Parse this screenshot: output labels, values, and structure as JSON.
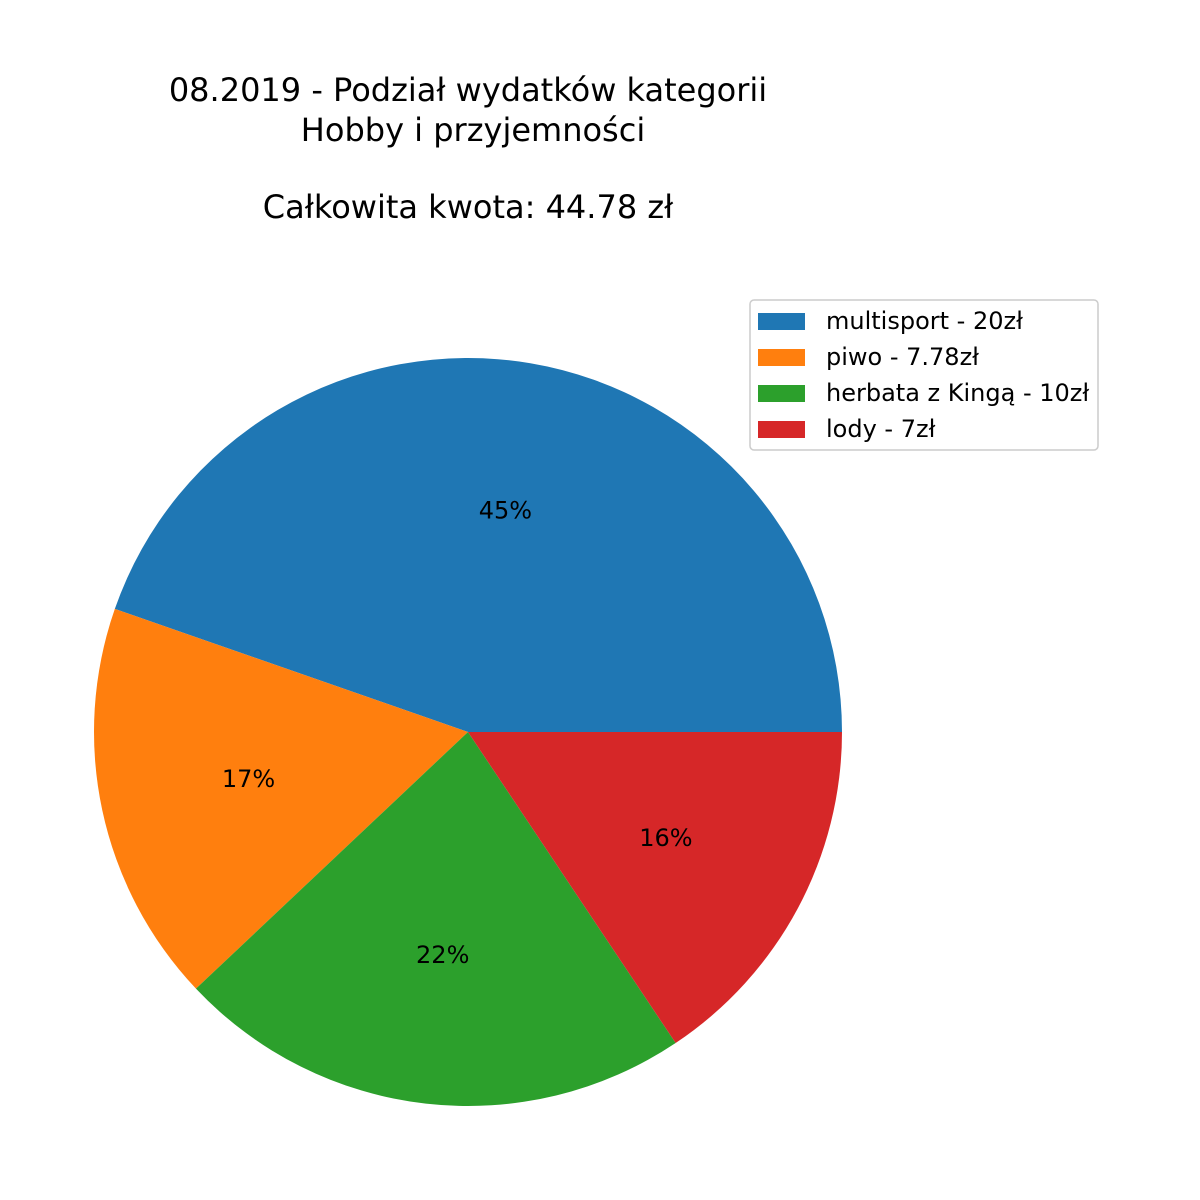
{
  "chart_data": {
    "type": "pie",
    "title_lines": [
      "08.2019 - Podział wydatków kategorii",
      "Hobby i przyjemności",
      "Całkowita kwota: 44.78 zł"
    ],
    "start_angle": 0,
    "direction": "counterclockwise",
    "legend_placement": "top-right",
    "slices": [
      {
        "label": "multisport - 20zł",
        "value": 20,
        "pct_label": "45%",
        "color": "#1f77b4"
      },
      {
        "label": "piwo - 7.78zł",
        "value": 7.78,
        "pct_label": "17%",
        "color": "#ff7f0e"
      },
      {
        "label": "herbata z Kingą - 10zł",
        "value": 10,
        "pct_label": "22%",
        "color": "#2ca02c"
      },
      {
        "label": "lody - 7zł",
        "value": 7,
        "pct_label": "16%",
        "color": "#d62728"
      }
    ]
  }
}
